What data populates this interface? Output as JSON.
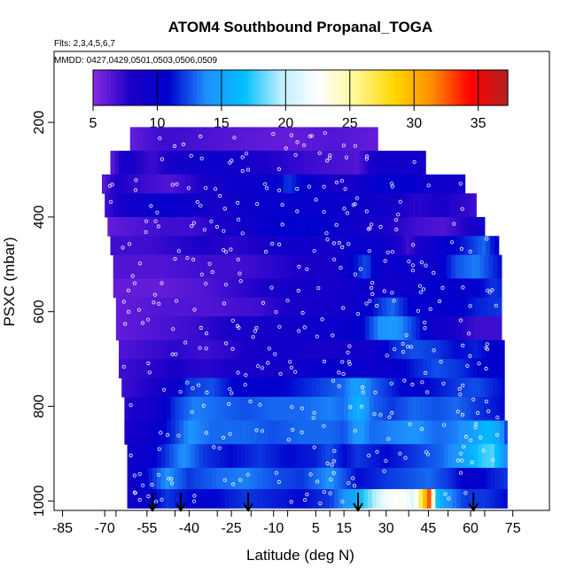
{
  "chart_data": {
    "type": "heatmap",
    "title": "ATOM4 Southbound Propanal_TOGA",
    "flights_note": "Flts: 2,3,4,5,6,7",
    "dates_note": "MMDD: 0427,0429,0501,0503,0506,0509",
    "xlabel": "Latitude (deg N)",
    "ylabel": "PSXC (mbar)",
    "xlim": [
      -88,
      88
    ],
    "ylim": [
      1020,
      50
    ],
    "x_ticks": [
      -85,
      -70,
      -55,
      -40,
      -25,
      -10,
      5,
      15,
      30,
      45,
      60,
      75
    ],
    "y_ticks": [
      200,
      400,
      600,
      800,
      1000
    ],
    "colorbar": {
      "min": 5,
      "max": 37.3,
      "ticks": [
        5,
        10,
        15,
        20,
        25,
        30,
        35
      ],
      "colors": [
        "#8a2be2",
        "#1a00c8",
        "#0000cd",
        "#1e90ff",
        "#00bfff",
        "#bfefff",
        "#ffffff",
        "#fff68f",
        "#ffd700",
        "#ff8c00",
        "#ff0000",
        "#b22222"
      ]
    },
    "arrow_latitudes": [
      -53,
      -43,
      -19,
      20,
      61
    ],
    "flight_start_latitudes": [
      -66,
      -45,
      -30,
      -18,
      -5,
      10,
      24,
      38,
      52,
      65
    ],
    "bands": [
      {
        "p0": 210,
        "p1": 260,
        "lon": -61,
        "hin": 27,
        "levels": [
          [
            -61,
            6
          ],
          [
            -50,
            7
          ],
          [
            -45,
            7
          ],
          [
            -30,
            6.5
          ],
          [
            -5,
            6
          ],
          [
            12,
            6.5
          ],
          [
            27,
            6
          ]
        ]
      },
      {
        "p0": 260,
        "p1": 310,
        "lon": -68,
        "hin": 44,
        "levels": [
          [
            -68,
            6
          ],
          [
            -63,
            8.5
          ],
          [
            -53,
            7
          ],
          [
            -48,
            8
          ],
          [
            -40,
            9
          ],
          [
            -30,
            9.5
          ],
          [
            -15,
            8
          ],
          [
            5,
            7
          ],
          [
            20,
            6.5
          ],
          [
            27,
            9
          ],
          [
            44,
            9
          ]
        ]
      },
      {
        "p0": 310,
        "p1": 350,
        "lon": -71,
        "hin": 58,
        "levels": [
          [
            -71,
            6
          ],
          [
            -66,
            8
          ],
          [
            -55,
            7
          ],
          [
            -47,
            6.5
          ],
          [
            -35,
            8
          ],
          [
            -25,
            9.5
          ],
          [
            -10,
            10
          ],
          [
            -5,
            12
          ],
          [
            5,
            9.5
          ],
          [
            15,
            8
          ],
          [
            30,
            11
          ],
          [
            45,
            9.5
          ],
          [
            58,
            9
          ]
        ]
      },
      {
        "p0": 350,
        "p1": 400,
        "lon": -70,
        "hin": 62,
        "levels": [
          [
            -70,
            7
          ],
          [
            -60,
            9
          ],
          [
            -50,
            10
          ],
          [
            -40,
            9.5
          ],
          [
            -30,
            8
          ],
          [
            -20,
            9.5
          ],
          [
            -10,
            10
          ],
          [
            0,
            10
          ],
          [
            10,
            10
          ],
          [
            20,
            9.5
          ],
          [
            30,
            9
          ],
          [
            40,
            7.5
          ],
          [
            50,
            8
          ],
          [
            62,
            7
          ]
        ]
      },
      {
        "p0": 400,
        "p1": 440,
        "lon": -69,
        "hin": 65,
        "levels": [
          [
            -69,
            6
          ],
          [
            -60,
            6.5
          ],
          [
            -50,
            7
          ],
          [
            -38,
            7
          ],
          [
            -30,
            8
          ],
          [
            -20,
            9
          ],
          [
            -10,
            10.5
          ],
          [
            0,
            11
          ],
          [
            10,
            10
          ],
          [
            20,
            9
          ],
          [
            30,
            8
          ],
          [
            40,
            7
          ],
          [
            50,
            6.5
          ],
          [
            60,
            8
          ],
          [
            65,
            9
          ]
        ]
      },
      {
        "p0": 440,
        "p1": 480,
        "lon": -68,
        "hin": 70,
        "levels": [
          [
            -68,
            7
          ],
          [
            -55,
            7
          ],
          [
            -45,
            7.5
          ],
          [
            -35,
            8
          ],
          [
            -25,
            7.5
          ],
          [
            -15,
            8
          ],
          [
            -5,
            9.5
          ],
          [
            5,
            9
          ],
          [
            12,
            8.5
          ],
          [
            18,
            10
          ],
          [
            28,
            10
          ],
          [
            38,
            7
          ],
          [
            48,
            10
          ],
          [
            58,
            11.5
          ],
          [
            65,
            13
          ],
          [
            70,
            10
          ]
        ]
      },
      {
        "p0": 480,
        "p1": 530,
        "lon": -67,
        "hin": 71,
        "levels": [
          [
            -67,
            6.5
          ],
          [
            -50,
            6.5
          ],
          [
            -35,
            7
          ],
          [
            -20,
            7
          ],
          [
            -10,
            7.5
          ],
          [
            0,
            8
          ],
          [
            10,
            8
          ],
          [
            15,
            9.5
          ],
          [
            20,
            11.5
          ],
          [
            23,
            12.5
          ],
          [
            26,
            10.5
          ],
          [
            30,
            9
          ],
          [
            35,
            10
          ],
          [
            40,
            9
          ],
          [
            47,
            9.5
          ],
          [
            55,
            12.5
          ],
          [
            62,
            13.5
          ],
          [
            71,
            11
          ]
        ]
      },
      {
        "p0": 530,
        "p1": 570,
        "lon": -67,
        "hin": 71,
        "levels": [
          [
            -67,
            6
          ],
          [
            -50,
            6
          ],
          [
            -35,
            6.5
          ],
          [
            -20,
            7.5
          ],
          [
            -5,
            8.5
          ],
          [
            5,
            9
          ],
          [
            10,
            8.5
          ],
          [
            20,
            9.5
          ],
          [
            30,
            9
          ],
          [
            40,
            9.5
          ],
          [
            45,
            11
          ],
          [
            55,
            10
          ],
          [
            62,
            10.5
          ],
          [
            68,
            12
          ],
          [
            71,
            11.5
          ]
        ]
      },
      {
        "p0": 570,
        "p1": 610,
        "lon": -66,
        "hin": 71,
        "levels": [
          [
            -66,
            6
          ],
          [
            -50,
            6.5
          ],
          [
            -35,
            6.5
          ],
          [
            -15,
            7
          ],
          [
            -5,
            8
          ],
          [
            5,
            8.5
          ],
          [
            15,
            9
          ],
          [
            22,
            10
          ],
          [
            28,
            12
          ],
          [
            32,
            13
          ],
          [
            38,
            11
          ],
          [
            45,
            10
          ],
          [
            55,
            10.5
          ],
          [
            62,
            11.5
          ],
          [
            71,
            12
          ]
        ]
      },
      {
        "p0": 610,
        "p1": 660,
        "lon": -66,
        "hin": 71,
        "levels": [
          [
            -66,
            6
          ],
          [
            -40,
            7
          ],
          [
            -25,
            8
          ],
          [
            -5,
            9
          ],
          [
            5,
            9.5
          ],
          [
            15,
            10
          ],
          [
            22,
            11
          ],
          [
            28,
            14
          ],
          [
            33,
            14.5
          ],
          [
            40,
            12
          ],
          [
            48,
            9
          ],
          [
            55,
            8
          ],
          [
            62,
            7
          ],
          [
            71,
            7
          ]
        ]
      },
      {
        "p0": 660,
        "p1": 700,
        "lon": -65,
        "hin": 72,
        "levels": [
          [
            -65,
            6.5
          ],
          [
            -55,
            7
          ],
          [
            -45,
            7.5
          ],
          [
            -35,
            7
          ],
          [
            -25,
            7.5
          ],
          [
            -15,
            8.5
          ],
          [
            -5,
            9
          ],
          [
            5,
            8
          ],
          [
            15,
            8.5
          ],
          [
            25,
            9
          ],
          [
            32,
            11.5
          ],
          [
            40,
            12.5
          ],
          [
            48,
            12
          ],
          [
            55,
            11
          ],
          [
            62,
            11.5
          ],
          [
            72,
            10
          ]
        ]
      },
      {
        "p0": 700,
        "p1": 740,
        "lon": -65,
        "hin": 72,
        "levels": [
          [
            -65,
            7
          ],
          [
            -55,
            7.5
          ],
          [
            -45,
            8
          ],
          [
            -35,
            7.5
          ],
          [
            -25,
            8
          ],
          [
            -15,
            8.5
          ],
          [
            -5,
            9
          ],
          [
            5,
            10
          ],
          [
            15,
            10.5
          ],
          [
            25,
            9.5
          ],
          [
            32,
            10
          ],
          [
            40,
            11.5
          ],
          [
            48,
            12.5
          ],
          [
            55,
            12
          ],
          [
            62,
            11
          ],
          [
            72,
            10.5
          ]
        ]
      },
      {
        "p0": 740,
        "p1": 780,
        "lon": -64,
        "hin": 72,
        "levels": [
          [
            -64,
            7
          ],
          [
            -52,
            8
          ],
          [
            -45,
            10
          ],
          [
            -40,
            12
          ],
          [
            -32,
            12.5
          ],
          [
            -25,
            11
          ],
          [
            -15,
            10.5
          ],
          [
            -5,
            11
          ],
          [
            5,
            12
          ],
          [
            15,
            13
          ],
          [
            20,
            15
          ],
          [
            25,
            13
          ],
          [
            35,
            11
          ],
          [
            45,
            11
          ],
          [
            55,
            12
          ],
          [
            62,
            12.5
          ],
          [
            72,
            11
          ]
        ]
      },
      {
        "p0": 780,
        "p1": 830,
        "lon": -63,
        "hin": 72,
        "levels": [
          [
            -63,
            7.5
          ],
          [
            -52,
            9
          ],
          [
            -45,
            12
          ],
          [
            -38,
            13.5
          ],
          [
            -30,
            13
          ],
          [
            -20,
            12.5
          ],
          [
            -10,
            13
          ],
          [
            0,
            13
          ],
          [
            10,
            13.5
          ],
          [
            15,
            13
          ],
          [
            20,
            16
          ],
          [
            25,
            13
          ],
          [
            32,
            12
          ],
          [
            40,
            13
          ],
          [
            48,
            12.5
          ],
          [
            55,
            13
          ],
          [
            62,
            12
          ],
          [
            72,
            11
          ]
        ]
      },
      {
        "p0": 830,
        "p1": 880,
        "lon": -63,
        "hin": 73,
        "levels": [
          [
            -63,
            8
          ],
          [
            -52,
            10
          ],
          [
            -45,
            12
          ],
          [
            -40,
            14
          ],
          [
            -32,
            13
          ],
          [
            -20,
            13
          ],
          [
            -10,
            12.5
          ],
          [
            0,
            13
          ],
          [
            10,
            13
          ],
          [
            15,
            12.5
          ],
          [
            20,
            14.5
          ],
          [
            25,
            13
          ],
          [
            32,
            13.5
          ],
          [
            40,
            14
          ],
          [
            48,
            13
          ],
          [
            55,
            13.5
          ],
          [
            62,
            15
          ],
          [
            66,
            16.5
          ],
          [
            70,
            15
          ],
          [
            73,
            12
          ]
        ]
      },
      {
        "p0": 880,
        "p1": 930,
        "lon": -62,
        "hin": 73,
        "levels": [
          [
            -62,
            9
          ],
          [
            -55,
            10
          ],
          [
            -48,
            12
          ],
          [
            -42,
            14
          ],
          [
            -35,
            12
          ],
          [
            -25,
            11
          ],
          [
            -15,
            12
          ],
          [
            -5,
            11
          ],
          [
            5,
            11.5
          ],
          [
            10,
            12.5
          ],
          [
            15,
            11
          ],
          [
            20,
            12
          ],
          [
            30,
            11
          ],
          [
            40,
            12
          ],
          [
            50,
            13
          ],
          [
            58,
            15
          ],
          [
            64,
            17.5
          ],
          [
            68,
            18
          ],
          [
            73,
            13
          ]
        ]
      },
      {
        "p0": 930,
        "p1": 975,
        "lon": -62,
        "hin": 73,
        "levels": [
          [
            -62,
            9
          ],
          [
            -55,
            11
          ],
          [
            -48,
            14
          ],
          [
            -40,
            12
          ],
          [
            -30,
            13
          ],
          [
            -20,
            13.5
          ],
          [
            -10,
            12.5
          ],
          [
            0,
            12
          ],
          [
            10,
            14
          ],
          [
            15,
            12.5
          ],
          [
            20,
            11
          ],
          [
            30,
            12
          ],
          [
            38,
            12.5
          ],
          [
            45,
            13
          ],
          [
            52,
            12
          ],
          [
            60,
            10
          ],
          [
            68,
            11.5
          ],
          [
            73,
            12
          ]
        ]
      },
      {
        "p0": 975,
        "p1": 1015,
        "lon": -62,
        "hin": 73,
        "levels": [
          [
            -62,
            9
          ],
          [
            -55,
            10
          ],
          [
            -48,
            12
          ],
          [
            -40,
            11
          ],
          [
            -30,
            11
          ],
          [
            -20,
            12
          ],
          [
            -10,
            11.5
          ],
          [
            0,
            11
          ],
          [
            10,
            12
          ],
          [
            18,
            15
          ],
          [
            25,
            19
          ],
          [
            30,
            22
          ],
          [
            35,
            23
          ],
          [
            40,
            21
          ],
          [
            42,
            26
          ],
          [
            44,
            30
          ],
          [
            45,
            34
          ],
          [
            46,
            28
          ],
          [
            48,
            17
          ],
          [
            52,
            14
          ],
          [
            58,
            12
          ],
          [
            65,
            12
          ],
          [
            73,
            11
          ]
        ]
      }
    ]
  }
}
